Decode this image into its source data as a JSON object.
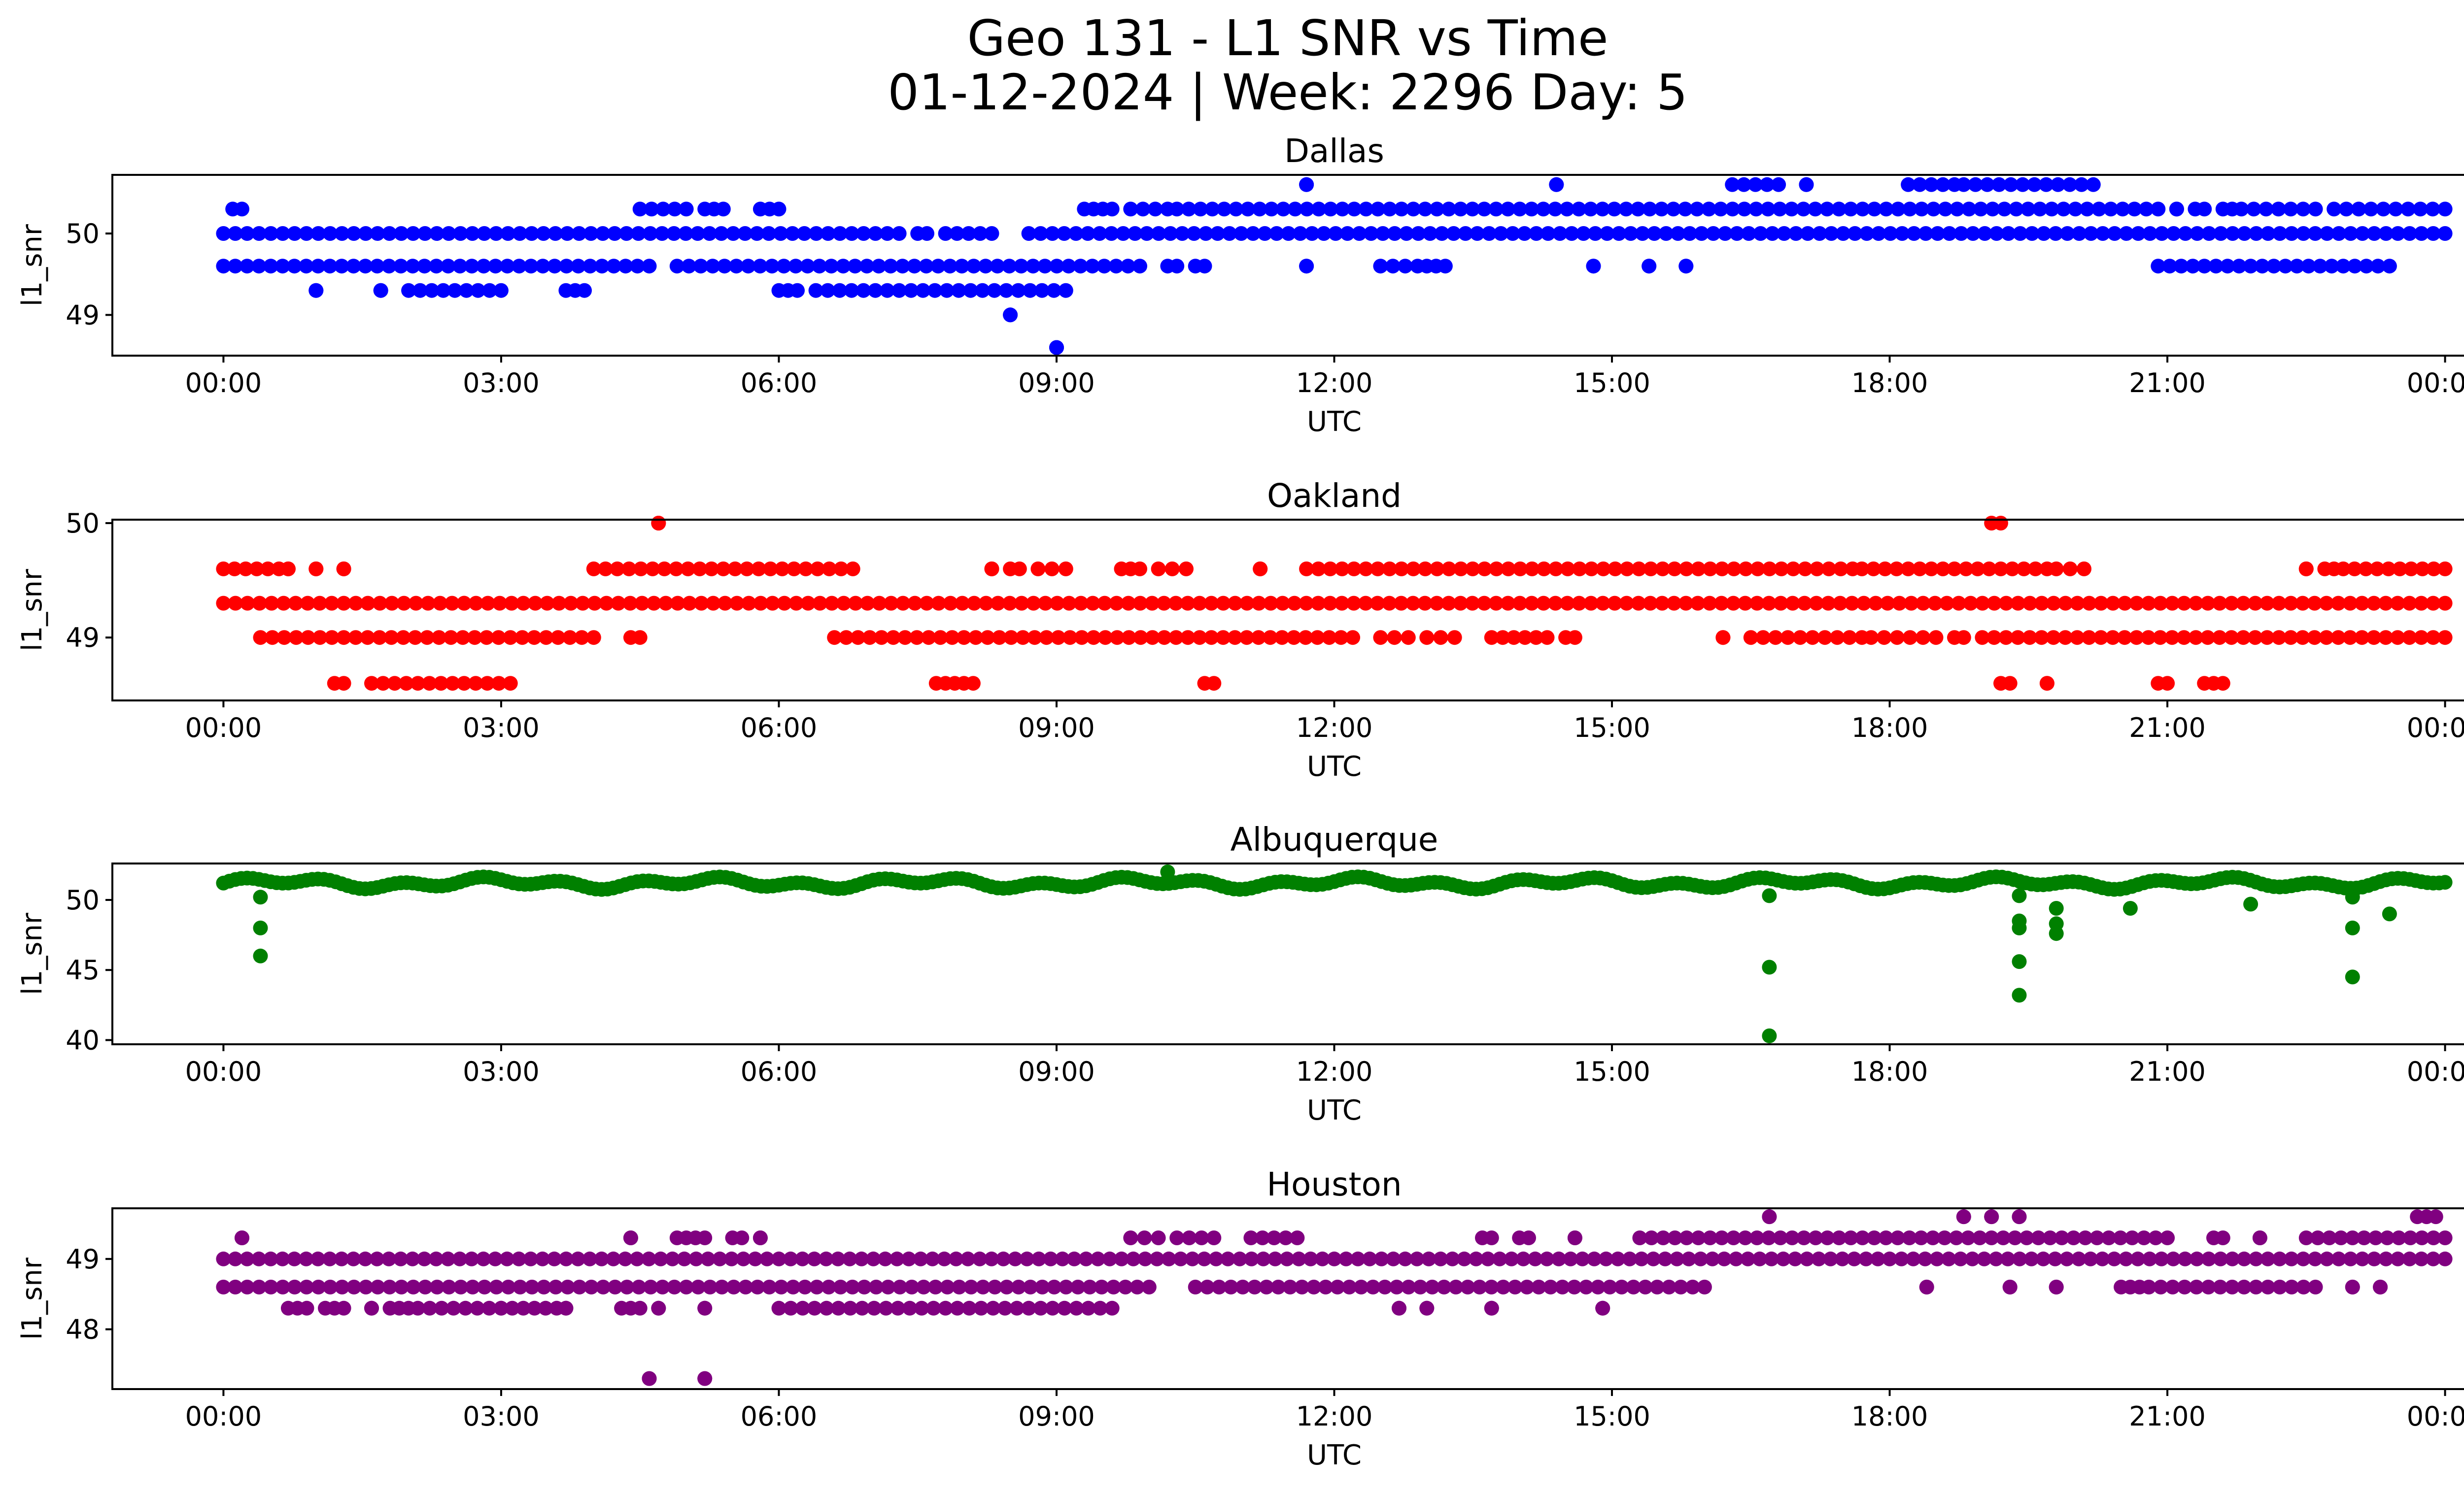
{
  "figure": {
    "title_line1": "Geo 131 - L1 SNR vs Time",
    "title_line2": "01-12-2024 | Week: 2296 Day: 5"
  },
  "chart_data": [
    {
      "type": "scatter",
      "title": "Dallas",
      "xlabel": "UTC",
      "ylabel": "l1_snr",
      "color": "#0000ff",
      "xticks": [
        "00:00",
        "03:00",
        "06:00",
        "09:00",
        "12:00",
        "15:00",
        "18:00",
        "21:00",
        "00:00"
      ],
      "yticks": [
        49,
        50
      ],
      "xlim_hours": [
        -1.2,
        25.2
      ],
      "ylim": [
        48.5,
        50.72
      ],
      "levels": [
        {
          "y": 50.0,
          "segments": [
            [
              0.0,
              7.3
            ],
            [
              7.5,
              7.6
            ],
            [
              7.8,
              8.3
            ],
            [
              8.7,
              24.0
            ]
          ]
        },
        {
          "y": 49.6,
          "segments": [
            [
              0.0,
              4.6
            ],
            [
              4.9,
              9.9
            ],
            [
              10.2,
              10.3
            ],
            [
              10.5,
              10.6
            ],
            [
              11.7,
              11.7
            ],
            [
              12.5,
              12.9
            ],
            [
              13.0,
              13.2
            ],
            [
              14.8,
              14.8
            ],
            [
              15.4,
              15.4
            ],
            [
              15.8,
              15.8
            ],
            [
              20.9,
              23.4
            ]
          ]
        },
        {
          "y": 50.3,
          "segments": [
            [
              0.1,
              0.2
            ],
            [
              4.5,
              5.0
            ],
            [
              5.2,
              5.4
            ],
            [
              5.8,
              6.0
            ],
            [
              9.3,
              9.4
            ],
            [
              9.5,
              9.6
            ],
            [
              9.8,
              10.2
            ],
            [
              10.3,
              20.9
            ],
            [
              21.1,
              21.1
            ],
            [
              21.3,
              21.4
            ],
            [
              21.6,
              21.7
            ],
            [
              21.8,
              22.6
            ],
            [
              22.8,
              24.0
            ]
          ]
        },
        {
          "y": 50.6,
          "segments": [
            [
              11.7,
              11.7
            ],
            [
              14.4,
              14.4
            ],
            [
              16.3,
              16.8
            ],
            [
              17.1,
              17.1
            ],
            [
              18.2,
              18.7
            ],
            [
              18.8,
              20.2
            ]
          ]
        },
        {
          "y": 49.3,
          "segments": [
            [
              1.0,
              1.0
            ],
            [
              1.7,
              1.7
            ],
            [
              2.0,
              3.0
            ],
            [
              3.7,
              3.9
            ],
            [
              6.0,
              6.2
            ],
            [
              6.4,
              9.1
            ]
          ]
        },
        {
          "y": 49.0,
          "segments": [
            [
              8.5,
              8.5
            ]
          ]
        },
        {
          "y": 48.6,
          "segments": [
            [
              9.0,
              9.0
            ]
          ]
        }
      ]
    },
    {
      "type": "scatter",
      "title": "Oakland",
      "xlabel": "UTC",
      "ylabel": "l1_snr",
      "color": "#ff0000",
      "xticks": [
        "00:00",
        "03:00",
        "06:00",
        "09:00",
        "12:00",
        "15:00",
        "18:00",
        "21:00",
        "00:00"
      ],
      "yticks": [
        49,
        50
      ],
      "xlim_hours": [
        -1.2,
        25.2
      ],
      "ylim": [
        48.45,
        50.03
      ],
      "levels": [
        {
          "y": 49.3,
          "segments": [
            [
              0.0,
              2.6
            ],
            [
              2.6,
              24.0
            ]
          ]
        },
        {
          "y": 49.0,
          "segments": [
            [
              0.4,
              4.0
            ],
            [
              4.4,
              4.5
            ],
            [
              6.6,
              12.2
            ],
            [
              12.5,
              12.8
            ],
            [
              13.0,
              13.3
            ],
            [
              13.7,
              14.3
            ],
            [
              14.5,
              14.6
            ],
            [
              16.2,
              16.2
            ],
            [
              16.5,
              17.7
            ],
            [
              17.8,
              18.5
            ],
            [
              18.7,
              18.8
            ],
            [
              19.0,
              24.0
            ]
          ]
        },
        {
          "y": 49.6,
          "segments": [
            [
              0.0,
              0.6
            ],
            [
              0.7,
              0.7
            ],
            [
              1.0,
              1.0
            ],
            [
              1.3,
              1.3
            ],
            [
              4.0,
              6.8
            ],
            [
              8.3,
              8.3
            ],
            [
              8.5,
              8.6
            ],
            [
              8.8,
              9.1
            ],
            [
              9.7,
              9.9
            ],
            [
              10.1,
              10.4
            ],
            [
              11.2,
              11.2
            ],
            [
              11.7,
              17.6
            ],
            [
              17.7,
              19.7
            ],
            [
              19.8,
              20.1
            ],
            [
              22.5,
              22.5
            ],
            [
              22.7,
              22.8
            ],
            [
              22.9,
              24.0
            ]
          ]
        },
        {
          "y": 48.6,
          "segments": [
            [
              1.2,
              1.3
            ],
            [
              1.6,
              3.1
            ],
            [
              7.7,
              7.8
            ],
            [
              7.9,
              8.1
            ],
            [
              10.6,
              10.7
            ],
            [
              19.2,
              19.3
            ],
            [
              19.7,
              19.7
            ],
            [
              20.9,
              21.0
            ],
            [
              21.4,
              21.6
            ]
          ]
        },
        {
          "y": 50.0,
          "segments": [
            [
              4.7,
              4.7
            ],
            [
              19.1,
              19.2
            ]
          ]
        }
      ]
    },
    {
      "type": "scatter",
      "title": "Albuquerque",
      "xlabel": "UTC",
      "ylabel": "l1_snr",
      "color": "#008000",
      "xticks": [
        "00:00",
        "03:00",
        "06:00",
        "09:00",
        "12:00",
        "15:00",
        "18:00",
        "21:00",
        "00:00"
      ],
      "yticks": [
        40,
        45,
        50
      ],
      "xlim_hours": [
        -1.2,
        25.2
      ],
      "ylim": [
        39.7,
        52.6
      ],
      "band": {
        "y": 51.2,
        "amplitude": 0.45,
        "x_range": [
          0.0,
          24.0
        ]
      },
      "points": [
        [
          0.4,
          50.2
        ],
        [
          0.4,
          48.0
        ],
        [
          0.4,
          46.0
        ],
        [
          16.7,
          50.3
        ],
        [
          16.7,
          45.2
        ],
        [
          16.7,
          40.3
        ],
        [
          19.4,
          48.5
        ],
        [
          19.4,
          48.0
        ],
        [
          19.4,
          45.6
        ],
        [
          19.4,
          43.2
        ],
        [
          19.4,
          50.3
        ],
        [
          19.8,
          49.4
        ],
        [
          19.8,
          48.3
        ],
        [
          19.8,
          47.6
        ],
        [
          20.6,
          49.4
        ],
        [
          21.9,
          49.7
        ],
        [
          23.0,
          50.2
        ],
        [
          23.0,
          48.0
        ],
        [
          23.0,
          44.5
        ],
        [
          23.4,
          49.0
        ],
        [
          10.2,
          52.0
        ]
      ]
    },
    {
      "type": "scatter",
      "title": "Houston",
      "xlabel": "UTC",
      "ylabel": "l1_snr",
      "color": "#800080",
      "xticks": [
        "00:00",
        "03:00",
        "06:00",
        "09:00",
        "12:00",
        "15:00",
        "18:00",
        "21:00",
        "00:00"
      ],
      "yticks": [
        48,
        49
      ],
      "xlim_hours": [
        -1.2,
        25.2
      ],
      "ylim": [
        47.15,
        49.72
      ],
      "levels": [
        {
          "y": 49.0,
          "segments": [
            [
              0.0,
              24.0
            ]
          ]
        },
        {
          "y": 48.6,
          "segments": [
            [
              0.0,
              10.0
            ],
            [
              10.5,
              16.0
            ],
            [
              18.4,
              18.4
            ],
            [
              19.3,
              19.3
            ],
            [
              19.8,
              19.8
            ],
            [
              20.5,
              20.7
            ],
            [
              20.8,
              22.6
            ],
            [
              23.0,
              23.0
            ],
            [
              23.3,
              23.3
            ]
          ]
        },
        {
          "y": 48.3,
          "segments": [
            [
              0.7,
              0.9
            ],
            [
              1.1,
              1.3
            ],
            [
              1.6,
              1.6
            ],
            [
              1.8,
              2.0
            ],
            [
              2.1,
              3.0
            ],
            [
              3.0,
              3.6
            ],
            [
              3.7,
              3.7
            ],
            [
              4.3,
              4.5
            ],
            [
              4.7,
              4.7
            ],
            [
              5.2,
              5.2
            ],
            [
              6.0,
              9.6
            ],
            [
              12.7,
              12.7
            ],
            [
              13.0,
              13.0
            ],
            [
              13.7,
              13.7
            ],
            [
              14.9,
              14.9
            ]
          ]
        },
        {
          "y": 49.3,
          "segments": [
            [
              0.2,
              0.2
            ],
            [
              4.4,
              4.4
            ],
            [
              4.9,
              5.0
            ],
            [
              5.1,
              5.2
            ],
            [
              5.5,
              5.6
            ],
            [
              5.8,
              5.8
            ],
            [
              9.8,
              10.1
            ],
            [
              10.3,
              10.7
            ],
            [
              11.1,
              11.6
            ],
            [
              13.6,
              13.7
            ],
            [
              14.0,
              14.1
            ],
            [
              14.6,
              14.6
            ],
            [
              15.3,
              21.0
            ],
            [
              21.5,
              21.6
            ],
            [
              22.0,
              22.0
            ],
            [
              22.5,
              24.0
            ]
          ]
        },
        {
          "y": 49.6,
          "segments": [
            [
              16.7,
              16.7
            ],
            [
              18.8,
              18.8
            ],
            [
              19.1,
              19.1
            ],
            [
              19.4,
              19.4
            ],
            [
              23.7,
              23.9
            ]
          ]
        },
        {
          "y": 47.3,
          "segments": [
            [
              4.6,
              4.6
            ],
            [
              5.2,
              5.2
            ]
          ]
        }
      ]
    }
  ]
}
